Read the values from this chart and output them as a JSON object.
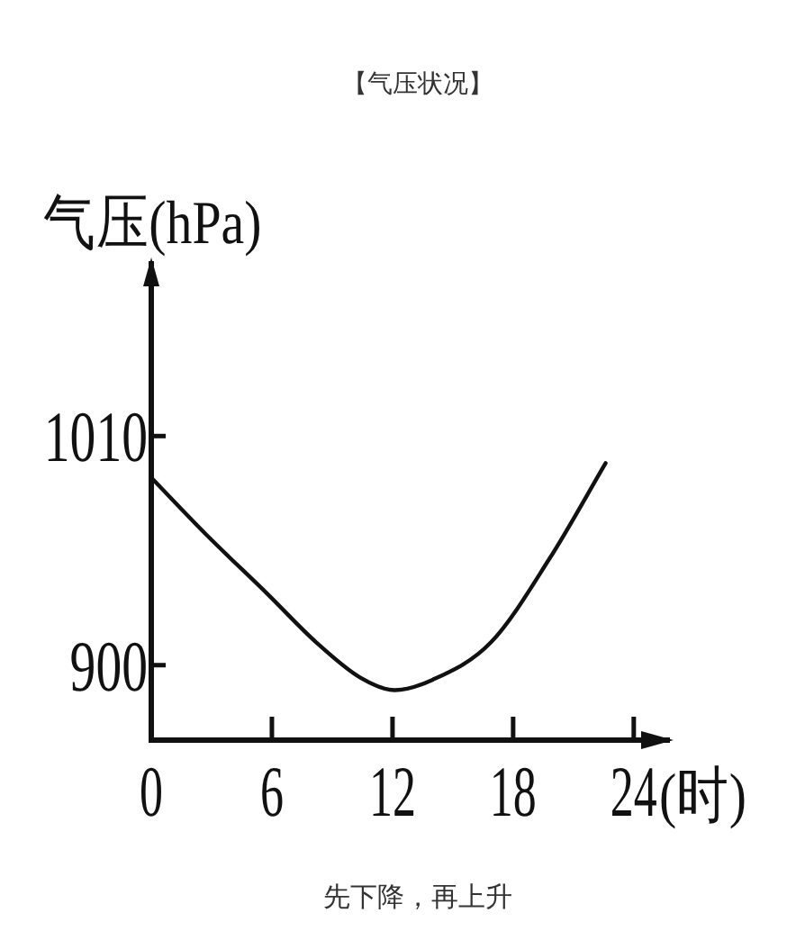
{
  "chart_data": {
    "type": "line",
    "title": "【气压状况】",
    "ylabel": "气压(hPa)",
    "xlabel": "(时)",
    "x": [
      0,
      2.7,
      5.8,
      8.2,
      10.4,
      12.1,
      14.0,
      16.9,
      19.8,
      22.6
    ],
    "series": [
      {
        "color": "#111111",
        "values": [
          990,
          963,
          934,
          911,
          894,
          888,
          893,
          911,
          951,
          997
        ]
      }
    ],
    "xlim": [
      0,
      25.8
    ],
    "ylim": [
      864,
      1094
    ],
    "xticks": [
      0,
      6,
      12,
      18,
      24
    ],
    "yticks": [
      900,
      1010
    ],
    "line_style": "solid",
    "annotations": [
      "先下降，再上升"
    ]
  }
}
